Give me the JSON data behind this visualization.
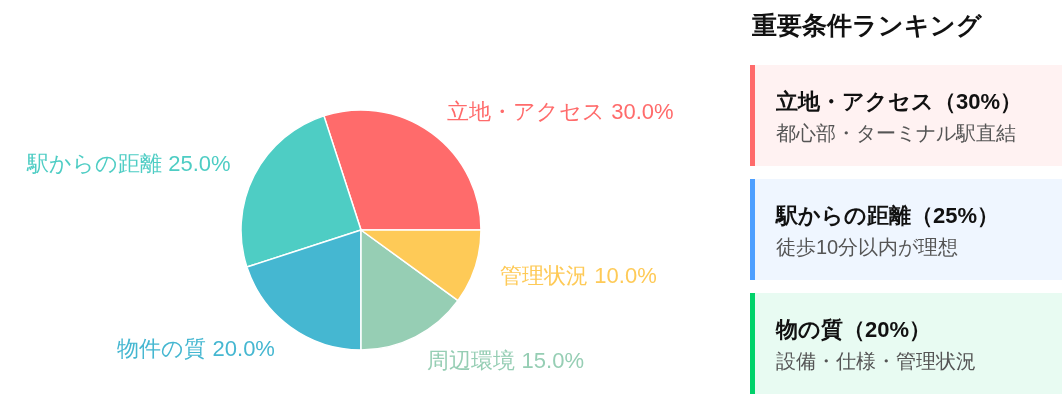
{
  "chart_data": [
    {
      "type": "pie",
      "categories": [
        "立地・アクセス",
        "駅からの距離",
        "物件の質",
        "周辺環境",
        "管理状況"
      ],
      "values": [
        30,
        25,
        20,
        15,
        10
      ],
      "colors": [
        "#ff6b6b",
        "#4ecdc4",
        "#45b7d1",
        "#96ceb4",
        "#feca57"
      ],
      "value_labels": [
        "30.0%",
        "25.0%",
        "20.0%",
        "15.0%",
        "10.0%"
      ]
    },
    {
      "type": "other",
      "title": "重要条件ランキング",
      "annotations": [
        "立地・アクセス（30%）",
        "都心部・ターミナル駅直結",
        "駅からの距離（25%）",
        "徒歩10分以内が理想",
        "物の質（20%）",
        "設備・仕様・管理状況"
      ],
      "colors": [
        "#ff6b6b",
        "#4d9fff",
        "#00d26a"
      ]
    }
  ]
}
